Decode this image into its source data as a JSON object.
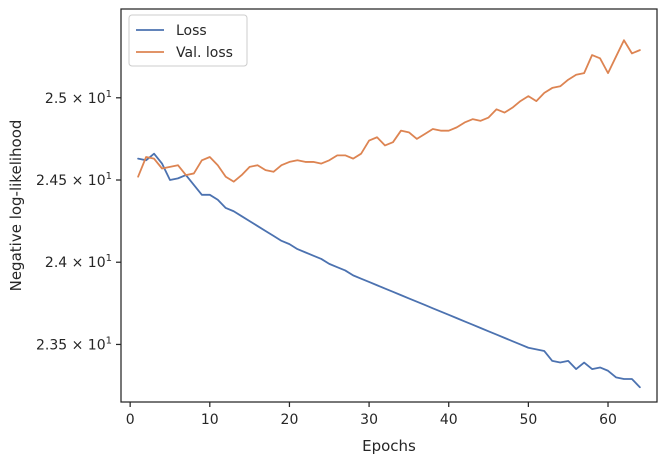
{
  "chart_data": {
    "type": "line",
    "title": "",
    "xlabel": "Epochs",
    "ylabel": "Negative log-likelihood",
    "xlim": [
      -1.15,
      66.15
    ],
    "ylim": [
      23.15,
      25.54
    ],
    "xticks": [
      0,
      10,
      20,
      30,
      40,
      50,
      60
    ],
    "yticks": [
      {
        "value": 23.5,
        "mantissa": "2.35",
        "exp": "1"
      },
      {
        "value": 24.0,
        "mantissa": "2.4",
        "exp": "1"
      },
      {
        "value": 24.5,
        "mantissa": "2.45",
        "exp": "1"
      },
      {
        "value": 25.0,
        "mantissa": "2.5",
        "exp": "1"
      }
    ],
    "times_sign": "×",
    "base": "10",
    "grid": false,
    "legend_position": "top-left",
    "colors": {
      "Loss": "#4c72b0",
      "Val. loss": "#dd8452",
      "axes": "#262626"
    },
    "x": [
      1,
      2,
      3,
      4,
      5,
      6,
      7,
      8,
      9,
      10,
      11,
      12,
      13,
      14,
      15,
      16,
      17,
      18,
      19,
      20,
      21,
      22,
      23,
      24,
      25,
      26,
      27,
      28,
      29,
      30,
      31,
      32,
      33,
      34,
      35,
      36,
      37,
      38,
      39,
      40,
      41,
      42,
      43,
      44,
      45,
      46,
      47,
      48,
      49,
      50,
      51,
      52,
      53,
      54,
      55,
      56,
      57,
      58,
      59,
      60,
      61,
      62,
      63,
      64
    ],
    "series": [
      {
        "name": "Loss",
        "values": [
          24.63,
          24.62,
          24.66,
          24.6,
          24.5,
          24.51,
          24.53,
          24.47,
          24.41,
          24.41,
          24.38,
          24.33,
          24.31,
          24.28,
          24.25,
          24.22,
          24.19,
          24.16,
          24.13,
          24.11,
          24.08,
          24.06,
          24.04,
          24.02,
          23.99,
          23.97,
          23.95,
          23.92,
          23.9,
          23.88,
          23.86,
          23.84,
          23.82,
          23.8,
          23.78,
          23.76,
          23.74,
          23.72,
          23.7,
          23.68,
          23.66,
          23.64,
          23.62,
          23.6,
          23.58,
          23.56,
          23.54,
          23.52,
          23.5,
          23.48,
          23.47,
          23.46,
          23.4,
          23.39,
          23.4,
          23.35,
          23.39,
          23.35,
          23.36,
          23.34,
          23.3,
          23.29,
          23.29,
          23.24
        ]
      },
      {
        "name": "Val. loss",
        "values": [
          24.52,
          24.64,
          24.63,
          24.57,
          24.58,
          24.59,
          24.53,
          24.54,
          24.62,
          24.64,
          24.59,
          24.52,
          24.49,
          24.53,
          24.58,
          24.59,
          24.56,
          24.55,
          24.59,
          24.61,
          24.62,
          24.61,
          24.61,
          24.6,
          24.62,
          24.65,
          24.65,
          24.63,
          24.66,
          24.74,
          24.76,
          24.71,
          24.73,
          24.8,
          24.79,
          24.75,
          24.78,
          24.81,
          24.8,
          24.8,
          24.82,
          24.85,
          24.87,
          24.86,
          24.88,
          24.93,
          24.91,
          24.94,
          24.98,
          25.01,
          24.98,
          25.03,
          25.06,
          25.07,
          25.11,
          25.14,
          25.15,
          25.26,
          25.24,
          25.15,
          25.25,
          25.35,
          25.27,
          25.29
        ]
      }
    ]
  }
}
